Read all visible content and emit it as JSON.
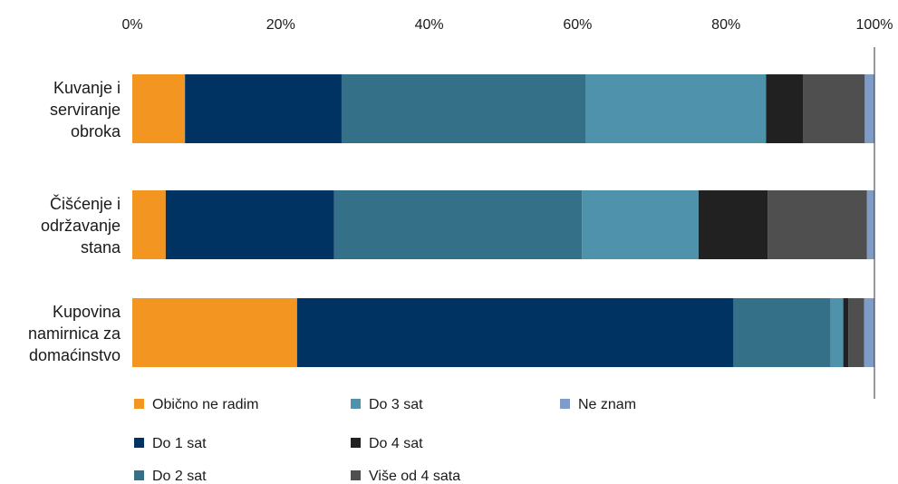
{
  "chart_data": {
    "type": "bar",
    "orientation": "horizontal",
    "stacked": true,
    "percent_stacked": true,
    "categories": [
      [
        "Kuvanje i",
        "serviranje",
        "obroka"
      ],
      [
        "Čišćenje i",
        "održavanje",
        "stana"
      ],
      [
        "Kupovina",
        "namirnica za",
        "domaćinstvo"
      ]
    ],
    "xlim": [
      0,
      100
    ],
    "x_ticks": [
      0,
      20,
      40,
      60,
      80,
      100
    ],
    "x_tick_labels": [
      "0%",
      "20%",
      "40%",
      "60%",
      "80%",
      "100%"
    ],
    "x_axis_position": "top",
    "grid": false,
    "legend_position": "bottom",
    "series": [
      {
        "name": "Obično ne radim",
        "color": "#F39521",
        "values": [
          7.1,
          4.5,
          22.2
        ]
      },
      {
        "name": "Do 1 sat",
        "color": "#003361",
        "values": [
          21.1,
          22.7,
          58.8
        ]
      },
      {
        "name": "Do 2 sat",
        "color": "#357089",
        "values": [
          32.9,
          33.4,
          13.1
        ]
      },
      {
        "name": "Do 3 sat",
        "color": "#4E93AB",
        "values": [
          24.3,
          15.7,
          1.7
        ]
      },
      {
        "name": "Do 4 sat",
        "color": "#212121",
        "values": [
          5.0,
          9.3,
          0.7
        ]
      },
      {
        "name": "Više od 4 sata",
        "color": "#4F4F4F",
        "values": [
          8.3,
          13.4,
          2.1
        ]
      },
      {
        "name": "Ne znam",
        "color": "#7F9CC9",
        "values": [
          1.3,
          1.0,
          1.4
        ]
      }
    ]
  }
}
